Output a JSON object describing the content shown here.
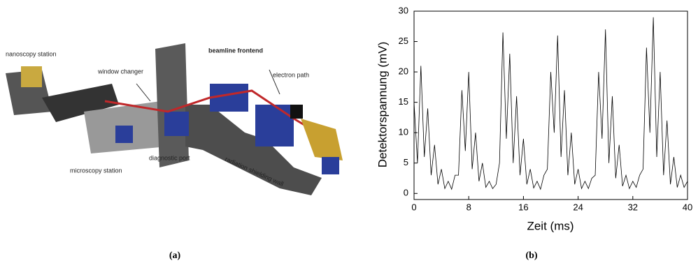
{
  "panel_a": {
    "labels": {
      "nanoscopy": "nanoscopy station",
      "window": "window changer",
      "frontend": "beamline frontend",
      "electron": "electron path",
      "diagnostic": "diagnostic port",
      "microscopy": "microscopy station",
      "wall": "radiation shielding wall"
    },
    "caption": "(a)"
  },
  "chart_data": {
    "type": "line",
    "caption": "(b)",
    "xlabel": "Zeit (ms)",
    "ylabel": "Detektorspannung (mV)",
    "color": "#000000",
    "x": [
      0,
      0.5,
      1,
      1.5,
      2,
      2.5,
      3,
      3.5,
      4,
      4.5,
      5,
      5.5,
      6,
      6.5,
      7,
      7.5,
      8,
      8.5,
      9,
      9.5,
      10,
      10.5,
      11,
      11.5,
      12,
      12.5,
      13,
      13.5,
      14,
      14.5,
      15,
      15.5,
      16,
      16.5,
      17,
      17.5,
      18,
      18.5,
      19,
      19.5,
      20,
      20.5,
      21,
      21.5,
      22,
      22.5,
      23,
      23.5,
      24,
      24.5,
      25,
      25.5,
      26,
      26.5,
      27,
      27.5,
      28,
      28.5,
      29,
      29.5,
      30,
      30.5,
      31,
      31.5,
      32,
      32.5,
      33,
      33.5,
      34,
      34.5,
      35,
      35.5,
      36,
      36.5,
      37,
      37.5,
      38,
      38.5,
      39,
      39.5,
      40
    ],
    "values": [
      15,
      5,
      21,
      6,
      14,
      3,
      8,
      1.5,
      4,
      0.8,
      2,
      0.7,
      3,
      3,
      17,
      7,
      20,
      4,
      10,
      2,
      5,
      1,
      2,
      0.8,
      1.5,
      5,
      26.5,
      9,
      23,
      5,
      16,
      3,
      9,
      1.5,
      4,
      0.9,
      2,
      0.7,
      3,
      4,
      20,
      10,
      26,
      6,
      17,
      3,
      10,
      1.5,
      4,
      0.8,
      2,
      0.8,
      2.5,
      3,
      20,
      9,
      27,
      5,
      16,
      2.5,
      8,
      1.2,
      3,
      0.8,
      2,
      1,
      3,
      4,
      24,
      10,
      29,
      6,
      20,
      3,
      12,
      1.5,
      6,
      1,
      3,
      1,
      2
    ],
    "xlim": [
      0,
      40
    ],
    "xticks": [
      0,
      8,
      16,
      24,
      32,
      40
    ],
    "ylim": [
      -1,
      30
    ],
    "yticks": [
      0,
      5,
      10,
      15,
      20,
      25,
      30
    ]
  }
}
